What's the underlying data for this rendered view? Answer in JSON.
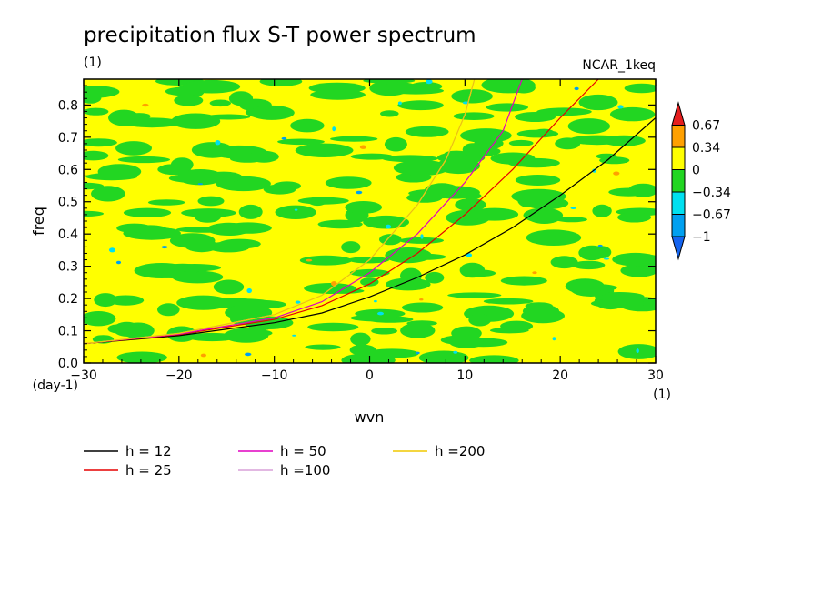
{
  "chart_data": {
    "type": "heatmap",
    "title": "precipitation flux S-T power spectrum",
    "subtitle": "(1)",
    "annotation_right": "NCAR_1keq",
    "xlabel": "wvn",
    "ylabel": "freq",
    "x_unit": "(1)",
    "y_unit": "(day-1)",
    "xlim": [
      -30,
      30
    ],
    "ylim": [
      0,
      0.88
    ],
    "x_ticks": [
      -30,
      -20,
      -10,
      0,
      10,
      20,
      30
    ],
    "x_tick_labels": [
      "−30",
      "−20",
      "−10",
      "0",
      "10",
      "20",
      "30"
    ],
    "y_ticks": [
      0.0,
      0.1,
      0.2,
      0.3,
      0.4,
      0.5,
      0.6,
      0.7,
      0.8
    ],
    "y_tick_labels": [
      "0.0",
      "0.1",
      "0.2",
      "0.3",
      "0.4",
      "0.5",
      "0.6",
      "0.7",
      "0.8"
    ],
    "colorbar": {
      "levels": [
        -1,
        -0.67,
        -0.34,
        0,
        0.34,
        0.67
      ],
      "level_labels": [
        "−1",
        "−0.67",
        "−0.34",
        "0",
        "0.34",
        "0.67"
      ],
      "colors": [
        "#1464f0",
        "#00a0f0",
        "#00e0f0",
        "#22d622",
        "#ffff00",
        "#ffa000",
        "#e61e1e"
      ]
    },
    "background_fill": {
      "description_colors": [
        "#ffff00",
        "#22d622"
      ],
      "rare_colors": [
        "#ffa000",
        "#00e0f0",
        "#00a0f0"
      ]
    },
    "series": [
      {
        "name": "h = 12",
        "color": "#000000",
        "x": [
          -30,
          -20,
          -10,
          -5,
          0,
          5,
          10,
          15,
          20,
          25,
          30
        ],
        "y": [
          0.06,
          0.085,
          0.125,
          0.155,
          0.205,
          0.265,
          0.335,
          0.42,
          0.52,
          0.63,
          0.76
        ]
      },
      {
        "name": "h = 25",
        "color": "#e60000",
        "x": [
          -30,
          -20,
          -10,
          -5,
          0,
          5,
          10,
          15,
          20,
          24
        ],
        "y": [
          0.06,
          0.088,
          0.135,
          0.178,
          0.245,
          0.34,
          0.46,
          0.6,
          0.76,
          0.88
        ]
      },
      {
        "name": "h = 50",
        "color": "#e000c0",
        "x": [
          -30,
          -20,
          -10,
          -5,
          0,
          5,
          10,
          14,
          16
        ],
        "y": [
          0.06,
          0.09,
          0.14,
          0.19,
          0.28,
          0.4,
          0.56,
          0.72,
          0.88
        ]
      },
      {
        "name": "h =100",
        "color": "#d8a0d8",
        "x": [
          -30,
          -20,
          -10,
          -5,
          0,
          5,
          8,
          10,
          11
        ],
        "y": [
          0.06,
          0.092,
          0.15,
          0.21,
          0.32,
          0.49,
          0.63,
          0.77,
          0.88
        ]
      },
      {
        "name": "h =200",
        "color": "#f0c800",
        "x": [
          -30,
          -20,
          -10,
          -5,
          0,
          5,
          8,
          10,
          11
        ],
        "y": [
          0.06,
          0.092,
          0.15,
          0.21,
          0.32,
          0.49,
          0.63,
          0.77,
          0.88
        ]
      }
    ],
    "grid": false,
    "legend_position": "bottom-left"
  }
}
